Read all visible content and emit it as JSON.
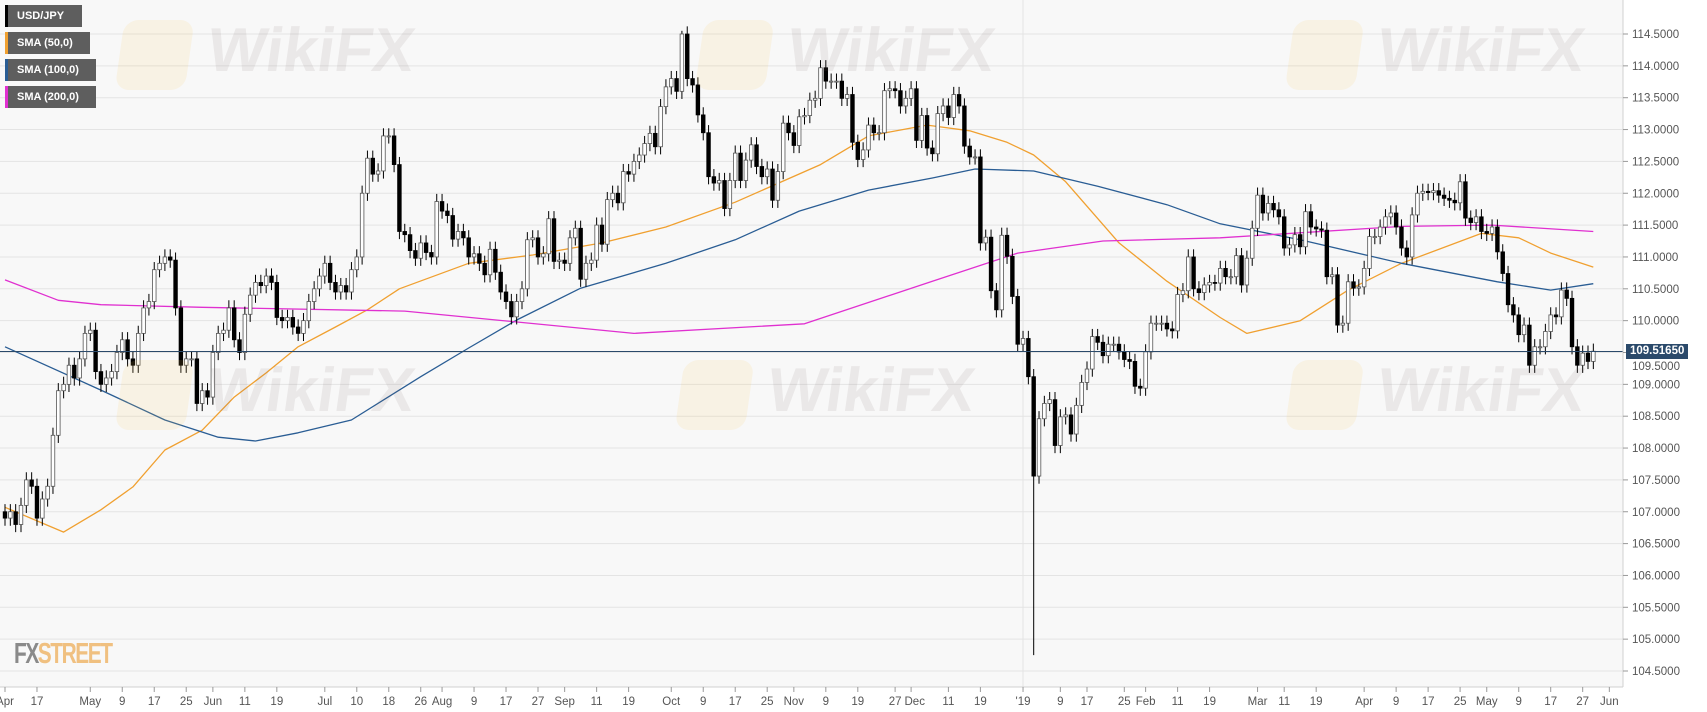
{
  "legend": [
    {
      "label": "USD/JPY",
      "color": "#000000"
    },
    {
      "label": "SMA (50,0)",
      "color": "#f0a030"
    },
    {
      "label": "SMA (100,0)",
      "color": "#2a5d94"
    },
    {
      "label": "SMA (200,0)",
      "color": "#e030d0"
    }
  ],
  "watermark": "WikiFX",
  "logo": {
    "part1": "FX",
    "part2": "STREET"
  },
  "chart_data": {
    "type": "candlestick",
    "symbol": "USD/JPY",
    "interval": "daily",
    "ylim": [
      104.3,
      114.85
    ],
    "yticks": [
      114.5,
      114.0,
      113.5,
      113.0,
      112.5,
      112.0,
      111.5,
      111.0,
      110.5,
      110.0,
      109.5,
      109.0,
      108.5,
      108.0,
      107.5,
      107.0,
      106.5,
      106.0,
      105.5,
      105.0,
      104.5
    ],
    "ytick_labels": [
      "114.5000",
      "114.0000",
      "113.5000",
      "113.0000",
      "112.5000",
      "112.0000",
      "111.5000",
      "111.0000",
      "110.5000",
      "110.0000",
      "109.5000",
      "109.0000",
      "108.5000",
      "108.0000",
      "107.5000",
      "107.0000",
      "106.5000",
      "106.0000",
      "105.5000",
      "105.0000",
      "104.5000"
    ],
    "current_price": 109.5165,
    "current_price_label": "109.51650",
    "xticks": [
      {
        "label": "Apr",
        "day": 0
      },
      {
        "label": "17",
        "day": 6
      },
      {
        "label": "May",
        "day": 16
      },
      {
        "label": "9",
        "day": 22
      },
      {
        "label": "17",
        "day": 28
      },
      {
        "label": "25",
        "day": 34
      },
      {
        "label": "Jun",
        "day": 39
      },
      {
        "label": "11",
        "day": 45
      },
      {
        "label": "19",
        "day": 51
      },
      {
        "label": "Jul",
        "day": 60
      },
      {
        "label": "10",
        "day": 66
      },
      {
        "label": "18",
        "day": 72
      },
      {
        "label": "26",
        "day": 78
      },
      {
        "label": "Aug",
        "day": 82
      },
      {
        "label": "9",
        "day": 88
      },
      {
        "label": "17",
        "day": 94
      },
      {
        "label": "27",
        "day": 100
      },
      {
        "label": "Sep",
        "day": 105
      },
      {
        "label": "11",
        "day": 111
      },
      {
        "label": "19",
        "day": 117
      },
      {
        "label": "Oct",
        "day": 125
      },
      {
        "label": "9",
        "day": 131
      },
      {
        "label": "17",
        "day": 137
      },
      {
        "label": "25",
        "day": 143
      },
      {
        "label": "Nov",
        "day": 148
      },
      {
        "label": "9",
        "day": 154
      },
      {
        "label": "19",
        "day": 160
      },
      {
        "label": "27",
        "day": 167
      },
      {
        "label": "Dec",
        "day": 170
      },
      {
        "label": "11",
        "day": 177
      },
      {
        "label": "19",
        "day": 183
      },
      {
        "label": "'19",
        "day": 191
      },
      {
        "label": "9",
        "day": 198
      },
      {
        "label": "17",
        "day": 203
      },
      {
        "label": "25",
        "day": 210
      },
      {
        "label": "Feb",
        "day": 214
      },
      {
        "label": "11",
        "day": 220
      },
      {
        "label": "19",
        "day": 226
      },
      {
        "label": "Mar",
        "day": 235
      },
      {
        "label": "11",
        "day": 240
      },
      {
        "label": "19",
        "day": 246
      },
      {
        "label": "Apr",
        "day": 255
      },
      {
        "label": "9",
        "day": 261
      },
      {
        "label": "17",
        "day": 267
      },
      {
        "label": "25",
        "day": 273
      },
      {
        "label": "May",
        "day": 278
      },
      {
        "label": "9",
        "day": 284
      },
      {
        "label": "17",
        "day": 290
      },
      {
        "label": "27",
        "day": 296
      },
      {
        "label": "Jun",
        "day": 301
      }
    ],
    "year_divider_day": 191,
    "first_open": 107.0,
    "close": [
      106.9,
      107.0,
      106.8,
      107.1,
      107.5,
      107.4,
      106.9,
      107.2,
      107.4,
      108.2,
      108.9,
      109.0,
      109.3,
      109.1,
      109.4,
      109.8,
      109.85,
      109.2,
      109.0,
      109.1,
      109.2,
      109.5,
      109.7,
      109.4,
      109.3,
      109.8,
      110.2,
      110.3,
      110.8,
      110.9,
      111.0,
      110.95,
      110.2,
      109.3,
      109.4,
      109.4,
      108.7,
      108.9,
      108.8,
      109.5,
      109.8,
      109.85,
      110.2,
      109.7,
      109.5,
      110.1,
      110.4,
      110.6,
      110.55,
      110.7,
      110.6,
      110.05,
      110.0,
      110.05,
      109.9,
      109.8,
      110.0,
      110.3,
      110.5,
      110.7,
      110.9,
      110.6,
      110.45,
      110.55,
      110.45,
      110.8,
      111.0,
      112.0,
      112.55,
      112.3,
      112.35,
      112.9,
      112.9,
      112.45,
      111.4,
      111.35,
      111.1,
      110.98,
      111.22,
      111.07,
      111.0,
      111.87,
      111.72,
      111.65,
      111.28,
      111.4,
      111.3,
      111.0,
      111.05,
      110.9,
      110.72,
      111.12,
      110.76,
      110.45,
      110.3,
      110.06,
      110.3,
      110.5,
      111.27,
      111.3,
      111.0,
      111.05,
      111.6,
      110.93,
      110.95,
      110.9,
      111.3,
      111.45,
      110.65,
      110.9,
      110.95,
      111.5,
      111.2,
      111.9,
      112.0,
      111.85,
      112.34,
      112.3,
      112.5,
      112.6,
      112.78,
      112.94,
      112.73,
      113.36,
      113.67,
      113.8,
      113.6,
      114.5,
      113.8,
      113.7,
      113.23,
      112.95,
      112.26,
      112.16,
      112.2,
      111.76,
      112.2,
      112.63,
      112.2,
      112.52,
      112.76,
      112.42,
      112.26,
      112.38,
      111.89,
      112.34,
      113.1,
      112.95,
      112.75,
      113.2,
      113.22,
      113.46,
      113.49,
      113.97,
      113.76,
      113.76,
      113.76,
      113.49,
      113.55,
      112.8,
      112.53,
      112.68,
      113.07,
      112.95,
      112.95,
      113.61,
      113.64,
      113.61,
      113.37,
      113.49,
      113.64,
      112.83,
      113.22,
      112.71,
      112.62,
      113.25,
      113.37,
      113.19,
      113.55,
      113.37,
      112.74,
      112.57,
      112.57,
      111.22,
      111.31,
      110.47,
      110.17,
      111.34,
      111.01,
      110.38,
      109.63,
      109.72,
      109.12,
      107.56,
      108.46,
      108.7,
      108.76,
      108.04,
      108.49,
      108.52,
      108.22,
      108.67,
      109.03,
      109.24,
      109.75,
      109.66,
      109.45,
      109.63,
      109.63,
      109.51,
      109.39,
      109.36,
      108.97,
      108.94,
      109.51,
      109.96,
      109.96,
      109.96,
      109.87,
      109.84,
      110.41,
      110.47,
      111.0,
      110.5,
      110.44,
      110.56,
      110.6,
      110.59,
      110.82,
      110.69,
      110.69,
      111.02,
      110.56,
      110.98,
      111.45,
      111.97,
      111.69,
      111.84,
      111.74,
      111.63,
      111.14,
      111.19,
      111.35,
      111.16,
      111.71,
      111.47,
      111.44,
      111.42,
      110.69,
      110.72,
      109.93,
      109.96,
      110.61,
      110.51,
      110.53,
      110.82,
      111.32,
      111.32,
      111.47,
      111.63,
      111.69,
      111.47,
      111.14,
      111.0,
      111.66,
      112.0,
      112.03,
      112.01,
      112.04,
      111.97,
      111.92,
      111.89,
      111.85,
      112.18,
      111.61,
      111.54,
      111.63,
      111.4,
      111.37,
      111.47,
      111.08,
      110.74,
      110.25,
      110.09,
      109.78,
      109.93,
      109.3,
      109.59,
      109.59,
      109.83,
      110.09,
      110.06,
      110.48,
      110.35,
      109.59,
      109.3,
      109.49,
      109.36,
      109.52
    ],
    "wick_extremes": [
      {
        "day": 193,
        "low": 104.75
      },
      {
        "day": 127,
        "high": 114.55
      }
    ],
    "sma": [
      {
        "name": "SMA (50,0)",
        "color": "#f0a030",
        "points": [
          [
            0,
            107.07
          ],
          [
            11,
            106.68
          ],
          [
            18,
            107.03
          ],
          [
            24,
            107.39
          ],
          [
            30,
            107.97
          ],
          [
            37,
            108.28
          ],
          [
            43,
            108.8
          ],
          [
            49,
            109.18
          ],
          [
            55,
            109.59
          ],
          [
            62,
            109.9
          ],
          [
            68,
            110.17
          ],
          [
            74,
            110.5
          ],
          [
            87,
            110.9
          ],
          [
            99,
            111.03
          ],
          [
            112,
            111.22
          ],
          [
            124,
            111.47
          ],
          [
            137,
            111.86
          ],
          [
            153,
            112.45
          ],
          [
            162,
            112.9
          ],
          [
            173,
            113.07
          ],
          [
            181,
            112.98
          ],
          [
            188,
            112.8
          ],
          [
            193,
            112.6
          ],
          [
            199,
            112.18
          ],
          [
            209,
            111.22
          ],
          [
            218,
            110.62
          ],
          [
            228,
            110.05
          ],
          [
            233,
            109.8
          ],
          [
            243,
            110.0
          ],
          [
            252,
            110.48
          ],
          [
            262,
            110.9
          ],
          [
            277,
            111.37
          ],
          [
            284,
            111.3
          ],
          [
            290,
            111.06
          ],
          [
            298,
            110.84
          ]
        ]
      },
      {
        "name": "SMA (100,0)",
        "color": "#2a5d94",
        "points": [
          [
            0,
            109.59
          ],
          [
            18,
            108.91
          ],
          [
            30,
            108.44
          ],
          [
            40,
            108.17
          ],
          [
            47,
            108.11
          ],
          [
            55,
            108.24
          ],
          [
            65,
            108.44
          ],
          [
            78,
            109.12
          ],
          [
            87,
            109.57
          ],
          [
            96,
            110.01
          ],
          [
            108,
            110.51
          ],
          [
            124,
            110.9
          ],
          [
            137,
            111.27
          ],
          [
            149,
            111.72
          ],
          [
            162,
            112.05
          ],
          [
            174,
            112.24
          ],
          [
            182,
            112.38
          ],
          [
            193,
            112.35
          ],
          [
            205,
            112.11
          ],
          [
            218,
            111.82
          ],
          [
            228,
            111.52
          ],
          [
            243,
            111.27
          ],
          [
            262,
            110.9
          ],
          [
            280,
            110.61
          ],
          [
            290,
            110.48
          ],
          [
            298,
            110.58
          ]
        ]
      },
      {
        "name": "SMA (200,0)",
        "color": "#e030d0",
        "points": [
          [
            0,
            110.64
          ],
          [
            10,
            110.32
          ],
          [
            18,
            110.25
          ],
          [
            37,
            110.21
          ],
          [
            75,
            110.15
          ],
          [
            118,
            109.8
          ],
          [
            150,
            109.95
          ],
          [
            174,
            110.62
          ],
          [
            190,
            111.06
          ],
          [
            206,
            111.25
          ],
          [
            228,
            111.3
          ],
          [
            262,
            111.48
          ],
          [
            279,
            111.5
          ],
          [
            298,
            111.4
          ]
        ]
      }
    ],
    "grid": true,
    "legend_position": "top-left"
  }
}
